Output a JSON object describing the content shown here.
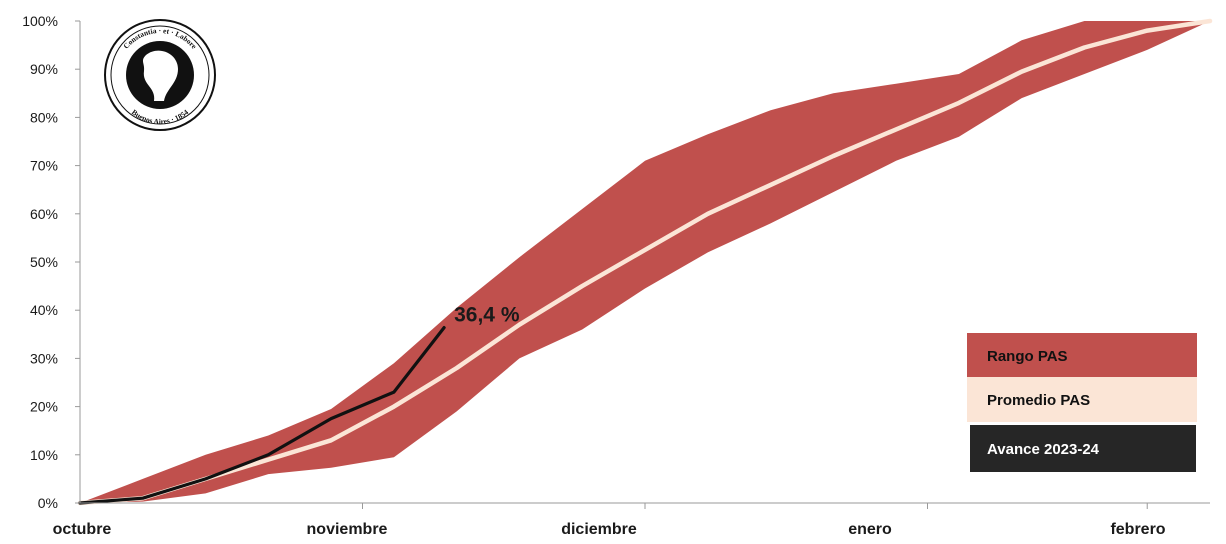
{
  "chart_data": {
    "type": "area",
    "title": "",
    "xlabel": "",
    "ylabel": "",
    "ylim": [
      0,
      100
    ],
    "y_ticks": [
      "0%",
      "10%",
      "20%",
      "30%",
      "40%",
      "50%",
      "60%",
      "70%",
      "80%",
      "90%",
      "100%"
    ],
    "x_ticks": [
      "octubre",
      "noviembre",
      "diciembre",
      "enero",
      "febrero"
    ],
    "x_range": [
      0,
      18
    ],
    "grid": false,
    "legend_position": "bottom-right",
    "series": [
      {
        "name": "Rango PAS",
        "kind": "band",
        "color": "#c0504d",
        "x": [
          0,
          1,
          2,
          3,
          4,
          5,
          6,
          7,
          8,
          9,
          10,
          11,
          12,
          13,
          14,
          15,
          16,
          17,
          18
        ],
        "low": [
          0,
          0.3,
          2,
          6,
          7.3,
          9.5,
          19,
          30,
          36,
          44.5,
          52,
          58,
          64.5,
          71,
          76,
          84,
          89,
          94,
          100
        ],
        "high": [
          0,
          5,
          10,
          14,
          19.5,
          29,
          40.5,
          51,
          61,
          71,
          76.5,
          81.5,
          85,
          87,
          89,
          96,
          100,
          100,
          100
        ]
      },
      {
        "name": "Promedio PAS",
        "kind": "line",
        "color": "#fbe5d6",
        "x": [
          0,
          1,
          2,
          3,
          4,
          5,
          6,
          7,
          8,
          9,
          10,
          11,
          12,
          13,
          14,
          15,
          16,
          17,
          18
        ],
        "y": [
          0,
          1,
          5,
          9,
          13,
          20,
          28,
          37,
          45,
          52.5,
          60,
          66,
          72,
          77.5,
          83,
          89.5,
          94.5,
          98,
          100
        ]
      },
      {
        "name": "Avance 2023-24",
        "kind": "line",
        "color": "#111111",
        "x": [
          0,
          1,
          2,
          3,
          4,
          5,
          5.8
        ],
        "y": [
          0,
          1,
          5,
          10,
          17.5,
          23,
          36.4
        ]
      }
    ],
    "annotations": [
      {
        "text": "36,4 %",
        "x": 5.8,
        "y": 36.4
      }
    ],
    "legend": {
      "items": [
        {
          "label": "Rango PAS",
          "bg": "#c0504d",
          "fg": "#111111"
        },
        {
          "label": "Promedio PAS",
          "bg": "#fbe5d6",
          "fg": "#111111"
        },
        {
          "label": "Avance 2023-24",
          "bg": "#262626",
          "fg": "#ffffff"
        }
      ]
    }
  },
  "logo": {
    "top_text": "Constantia · et · Labore",
    "bottom_text": "Buenos Aires · 1854"
  }
}
